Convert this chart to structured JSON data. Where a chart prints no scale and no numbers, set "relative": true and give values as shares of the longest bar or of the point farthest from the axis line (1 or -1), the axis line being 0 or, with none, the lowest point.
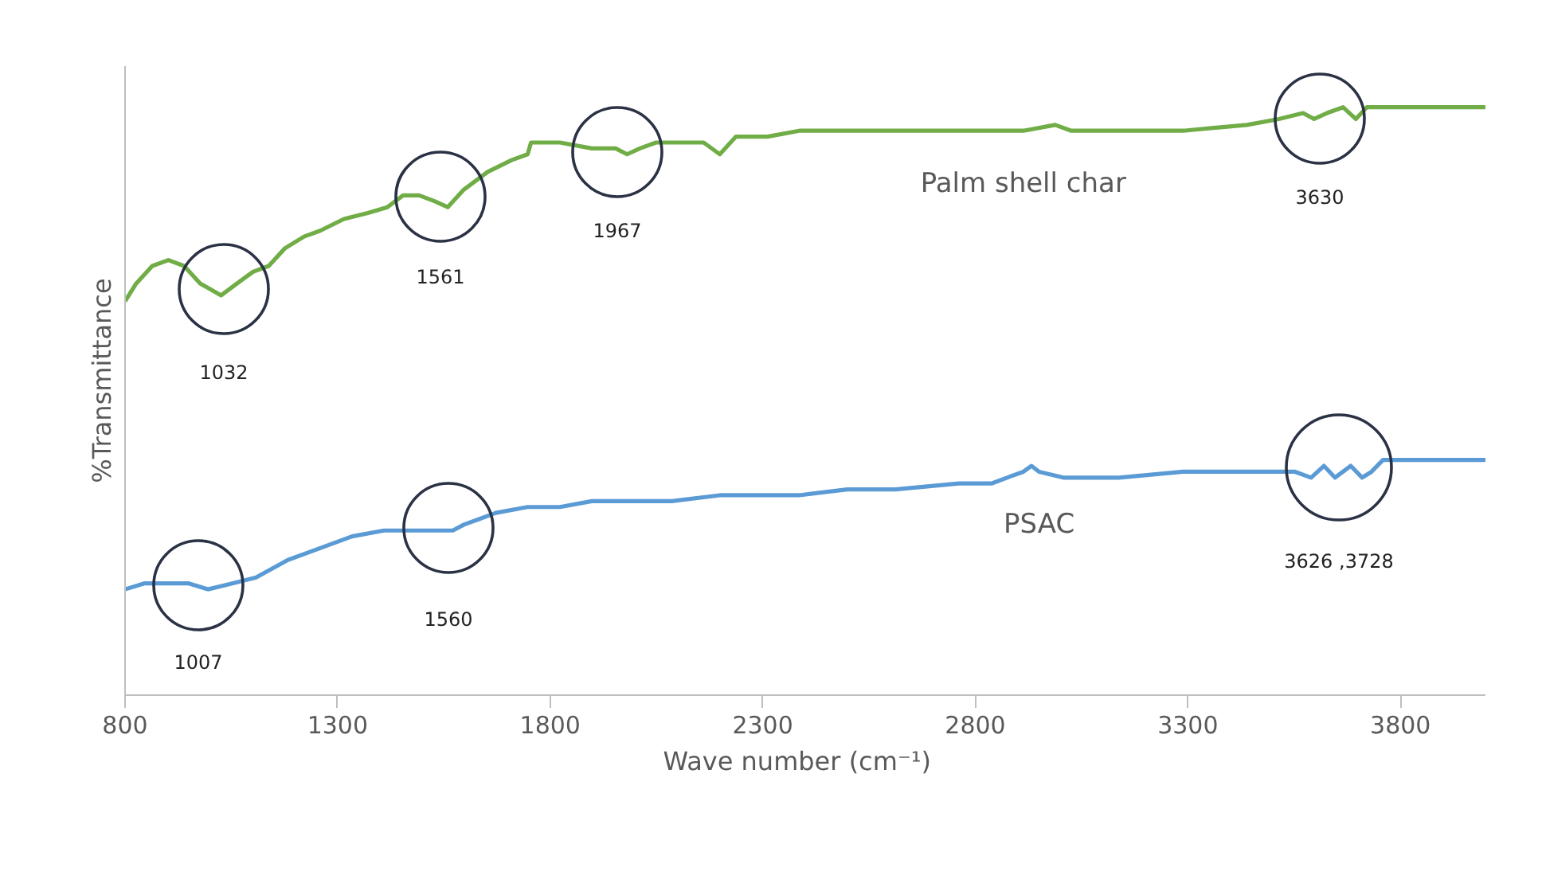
{
  "chart_data": {
    "type": "line",
    "relative": true,
    "xlabel": "Wave number   (cm⁻¹)",
    "ylabel": "%Transmittance",
    "xlim": [
      800,
      4000
    ],
    "xticks": [
      800,
      1300,
      1800,
      2300,
      2800,
      3300,
      3800
    ],
    "grid": false,
    "series": [
      {
        "name": "Palm shell char",
        "color": "#70ad47",
        "x": [
          800,
          826,
          864,
          902,
          939,
          977,
          1026,
          1063,
          1101,
          1138,
          1176,
          1221,
          1259,
          1315,
          1371,
          1417,
          1454,
          1492,
          1529,
          1559,
          1597,
          1653,
          1709,
          1747,
          1755,
          1823,
          1898,
          1954,
          1981,
          2011,
          2049,
          2105,
          2161,
          2199,
          2237,
          2311,
          2386,
          2443,
          2499,
          2612,
          2687,
          2838,
          2913,
          2988,
          3026,
          3138,
          3289,
          3439,
          3514,
          3571,
          3597,
          3627,
          3665,
          3695,
          3721,
          3777,
          3890,
          4000
        ],
        "values": [
          0.67,
          0.7,
          0.73,
          0.74,
          0.73,
          0.7,
          0.68,
          0.7,
          0.72,
          0.73,
          0.76,
          0.78,
          0.79,
          0.81,
          0.82,
          0.83,
          0.85,
          0.85,
          0.84,
          0.83,
          0.86,
          0.89,
          0.91,
          0.92,
          0.94,
          0.94,
          0.93,
          0.93,
          0.92,
          0.93,
          0.94,
          0.94,
          0.94,
          0.92,
          0.95,
          0.95,
          0.96,
          0.96,
          0.96,
          0.96,
          0.96,
          0.96,
          0.96,
          0.97,
          0.96,
          0.96,
          0.96,
          0.97,
          0.98,
          0.99,
          0.98,
          0.99,
          1.0,
          0.98,
          1.0,
          1.0,
          1.0,
          1.0
        ]
      },
      {
        "name": "PSAC",
        "color": "#5b9bd5",
        "x": [
          800,
          845,
          902,
          950,
          995,
          1052,
          1108,
          1183,
          1259,
          1334,
          1409,
          1465,
          1529,
          1571,
          1597,
          1635,
          1672,
          1747,
          1823,
          1898,
          1954,
          2011,
          2086,
          2199,
          2311,
          2349,
          2386,
          2499,
          2612,
          2762,
          2838,
          2875,
          2913,
          2932,
          2950,
          3007,
          3063,
          3138,
          3289,
          3439,
          3514,
          3552,
          3590,
          3620,
          3646,
          3683,
          3710,
          3732,
          3759,
          3890,
          4000
        ],
        "values": [
          0.18,
          0.19,
          0.19,
          0.19,
          0.18,
          0.19,
          0.2,
          0.23,
          0.25,
          0.27,
          0.28,
          0.28,
          0.28,
          0.28,
          0.29,
          0.3,
          0.31,
          0.32,
          0.32,
          0.33,
          0.33,
          0.33,
          0.33,
          0.34,
          0.34,
          0.34,
          0.34,
          0.35,
          0.35,
          0.36,
          0.36,
          0.37,
          0.38,
          0.39,
          0.38,
          0.37,
          0.37,
          0.37,
          0.38,
          0.38,
          0.38,
          0.38,
          0.37,
          0.39,
          0.37,
          0.39,
          0.37,
          0.38,
          0.4,
          0.4,
          0.4
        ]
      }
    ],
    "annotations": [
      "1032",
      "1561",
      "1967",
      "3630",
      "1007",
      "1560",
      "3626 ,3728"
    ]
  }
}
